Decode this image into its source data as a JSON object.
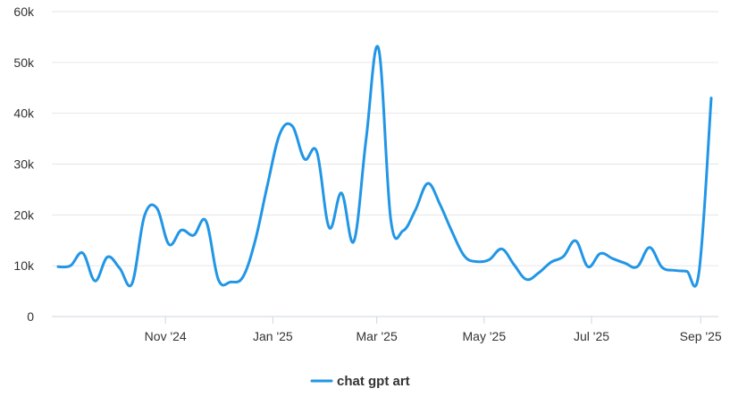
{
  "chart_data": {
    "type": "line",
    "ylim": [
      0,
      60000
    ],
    "y_ticks": [
      0,
      10000,
      20000,
      30000,
      40000,
      50000,
      60000
    ],
    "y_tick_labels": [
      "0",
      "10k",
      "20k",
      "30k",
      "40k",
      "50k",
      "60k"
    ],
    "x_range": [
      "2024-09-01",
      "2025-09-07"
    ],
    "x_ticks": [
      "2024-11-01",
      "2025-01-01",
      "2025-03-01",
      "2025-05-01",
      "2025-07-01",
      "2025-09-01"
    ],
    "x_tick_labels": [
      "Nov '24",
      "Jan '25",
      "Mar '25",
      "May '25",
      "Jul '25",
      "Sep '25"
    ],
    "grid": true,
    "legend_position": "bottom-center",
    "series": [
      {
        "name": "chat gpt art",
        "color": "#2196e6",
        "points": [
          [
            "2024-09-01",
            9800
          ],
          [
            "2024-09-08",
            10000
          ],
          [
            "2024-09-15",
            12500
          ],
          [
            "2024-09-22",
            7000
          ],
          [
            "2024-09-29",
            11700
          ],
          [
            "2024-10-06",
            9500
          ],
          [
            "2024-10-13",
            6500
          ],
          [
            "2024-10-20",
            19700
          ],
          [
            "2024-10-27",
            21400
          ],
          [
            "2024-11-03",
            14200
          ],
          [
            "2024-11-10",
            17000
          ],
          [
            "2024-11-17",
            16000
          ],
          [
            "2024-11-24",
            18800
          ],
          [
            "2024-12-01",
            7300
          ],
          [
            "2024-12-08",
            6800
          ],
          [
            "2024-12-15",
            7800
          ],
          [
            "2024-12-22",
            15000
          ],
          [
            "2024-12-29",
            26000
          ],
          [
            "2025-01-05",
            36000
          ],
          [
            "2025-01-12",
            37500
          ],
          [
            "2025-01-19",
            31000
          ],
          [
            "2025-01-26",
            32400
          ],
          [
            "2025-02-02",
            17500
          ],
          [
            "2025-02-09",
            24300
          ],
          [
            "2025-02-16",
            14800
          ],
          [
            "2025-02-23",
            35000
          ],
          [
            "2025-03-02",
            52800
          ],
          [
            "2025-03-09",
            19000
          ],
          [
            "2025-03-16",
            16900
          ],
          [
            "2025-03-23",
            21000
          ],
          [
            "2025-03-30",
            26200
          ],
          [
            "2025-04-06",
            22000
          ],
          [
            "2025-04-13",
            16500
          ],
          [
            "2025-04-20",
            11800
          ],
          [
            "2025-04-27",
            10800
          ],
          [
            "2025-05-04",
            11200
          ],
          [
            "2025-05-11",
            13300
          ],
          [
            "2025-05-18",
            10200
          ],
          [
            "2025-05-25",
            7300
          ],
          [
            "2025-06-01",
            8600
          ],
          [
            "2025-06-08",
            10700
          ],
          [
            "2025-06-15",
            11800
          ],
          [
            "2025-06-22",
            14900
          ],
          [
            "2025-06-29",
            9800
          ],
          [
            "2025-07-06",
            12400
          ],
          [
            "2025-07-13",
            11400
          ],
          [
            "2025-07-20",
            10500
          ],
          [
            "2025-07-27",
            9800
          ],
          [
            "2025-08-03",
            13600
          ],
          [
            "2025-08-10",
            9700
          ],
          [
            "2025-08-17",
            9100
          ],
          [
            "2025-08-24",
            8900
          ],
          [
            "2025-08-31",
            8600
          ],
          [
            "2025-09-07",
            43000
          ]
        ]
      }
    ]
  }
}
